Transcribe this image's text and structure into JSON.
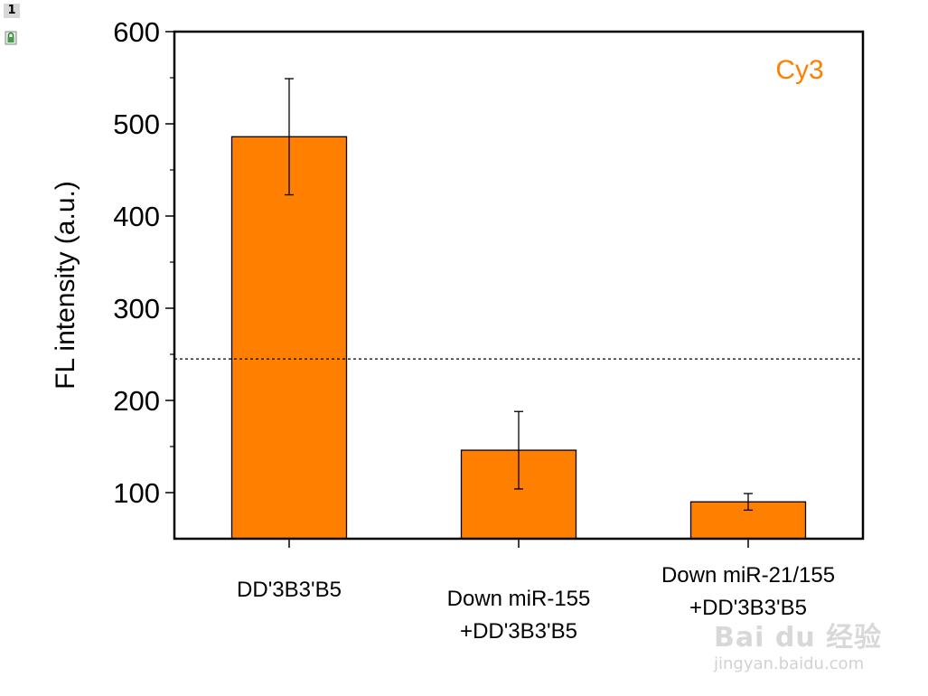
{
  "window": {
    "layer_number": "1"
  },
  "watermark": {
    "text": "Bai du 经验",
    "sub": "jingyan.baidu.com"
  },
  "colors": {
    "bar": "#ff7f00",
    "annotation": "#ff7f00",
    "axis": "#000000"
  },
  "chart_data": {
    "type": "bar",
    "categories": [
      [
        "DD'3B3'B5"
      ],
      [
        "Down miR-155",
        "+DD'3B3'B5"
      ],
      [
        "Down miR-21/155",
        "+DD'3B3'B5"
      ]
    ],
    "values": [
      486,
      146,
      90
    ],
    "errors": [
      63,
      42,
      9
    ],
    "ylabel": "FL intensity (a.u.)",
    "ylim": [
      50,
      600
    ],
    "yticks": [
      100,
      200,
      300,
      400,
      500,
      600
    ],
    "reference_line": 245,
    "annotation": "Cy3",
    "grid": false,
    "legend": "none"
  }
}
